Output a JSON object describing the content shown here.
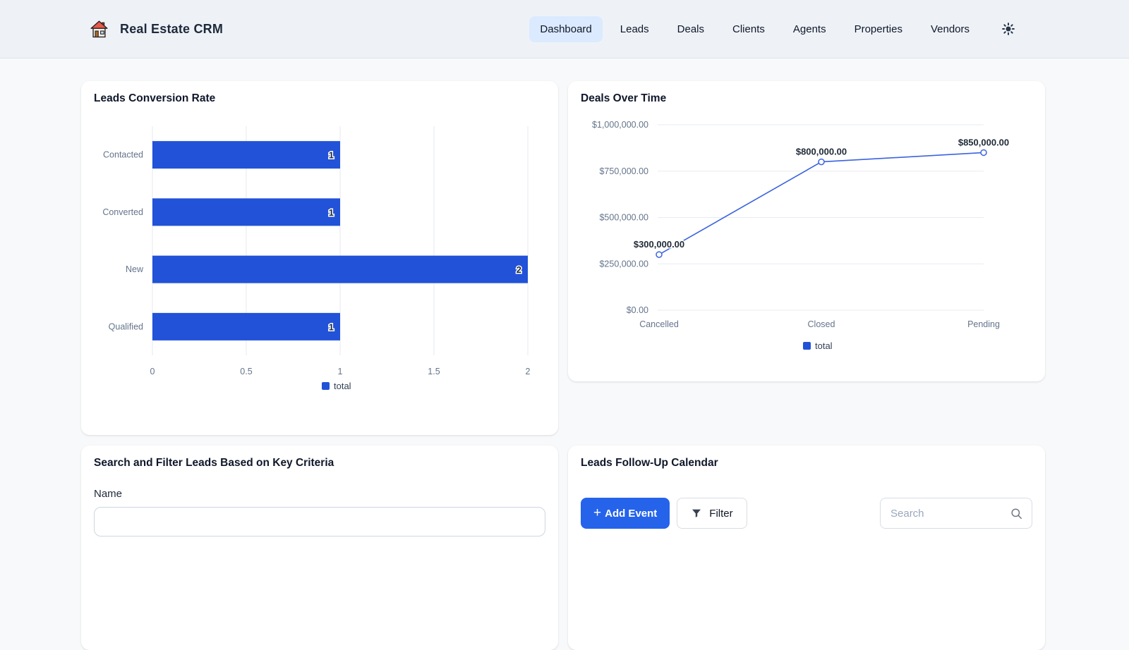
{
  "nav": {
    "brand": "Real Estate CRM",
    "logo_icon": "house-icon",
    "theme_toggle_icon": "sun-icon",
    "items": [
      {
        "label": "Dashboard",
        "active": true
      },
      {
        "label": "Leads",
        "active": false
      },
      {
        "label": "Deals",
        "active": false
      },
      {
        "label": "Clients",
        "active": false
      },
      {
        "label": "Agents",
        "active": false
      },
      {
        "label": "Properties",
        "active": false
      },
      {
        "label": "Vendors",
        "active": false
      }
    ]
  },
  "colors": {
    "accent_bar_blue": "#2152d8",
    "accent_line_blue": "#3b63e0",
    "active_tab_bg": "#dbeafe",
    "button_blue": "#2563eb",
    "grid_gray": "#e7eaf0",
    "axis_gray": "#64748b"
  },
  "leads_card": {
    "title": "Leads Conversion Rate"
  },
  "deals_card": {
    "title": "Deals Over Time"
  },
  "search_card": {
    "title": "Search and Filter Leads Based on Key Criteria",
    "name_label": "Name",
    "name_value": ""
  },
  "calendar_card": {
    "title": "Leads Follow-Up Calendar",
    "add_event_plus": "+",
    "add_event_label": "Add Event",
    "filter_label": "Filter",
    "filter_icon": "funnel-icon",
    "search_placeholder": "Search",
    "search_icon": "magnifier-icon"
  },
  "chart_data": [
    {
      "type": "bar",
      "orientation": "horizontal",
      "title": "Leads Conversion Rate",
      "categories": [
        "Contacted",
        "Converted",
        "New",
        "Qualified"
      ],
      "series": [
        {
          "name": "total",
          "values": [
            1,
            1,
            2,
            1
          ]
        }
      ],
      "value_labels": [
        "1",
        "1",
        "2",
        "1"
      ],
      "xlim": [
        0,
        2
      ],
      "xtick_labels": [
        "0",
        "0.5",
        "1",
        "1.5",
        "2"
      ],
      "xtick_values": [
        0,
        0.5,
        1,
        1.5,
        2
      ],
      "grid": true,
      "legend": [
        "total"
      ],
      "legend_position": "bottom",
      "color": "#2152d8"
    },
    {
      "type": "line",
      "title": "Deals Over Time",
      "categories": [
        "Cancelled",
        "Closed",
        "Pending"
      ],
      "series": [
        {
          "name": "total",
          "values": [
            300000,
            800000,
            850000
          ]
        }
      ],
      "point_labels": [
        "$300,000.00",
        "$800,000.00",
        "$850,000.00"
      ],
      "ylim": [
        0,
        1000000
      ],
      "ytick_labels": [
        "$1,000,000.00",
        "$750,000.00",
        "$500,000.00",
        "$250,000.00",
        "$0.00"
      ],
      "ytick_values": [
        1000000,
        750000,
        500000,
        250000,
        0
      ],
      "grid": true,
      "legend": [
        "total"
      ],
      "legend_position": "bottom",
      "color": "#3b63e0",
      "marker": "open-circle"
    }
  ]
}
